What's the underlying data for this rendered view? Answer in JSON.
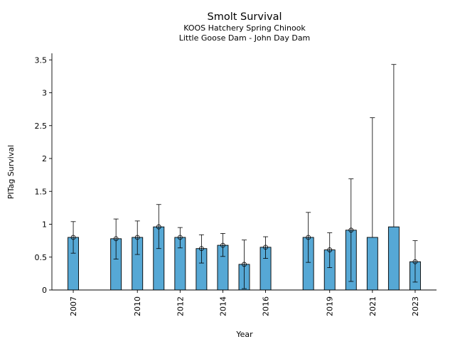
{
  "chart_data": {
    "type": "bar",
    "title": "Smolt Survival",
    "subtitle_lines": [
      "KOOS Hatchery Spring Chinook",
      "Little Goose Dam - John Day Dam"
    ],
    "xlabel": "Year",
    "ylabel": "PITag Survival",
    "ylim": [
      0,
      3.6
    ],
    "yticks": [
      0,
      0.5,
      1,
      1.5,
      2,
      2.5,
      3,
      3.5
    ],
    "ytick_labels": [
      "0",
      "0.5",
      "1",
      "1.5",
      "2",
      "2.5",
      "3",
      "3.5"
    ],
    "xlim": [
      2006,
      2024
    ],
    "xticks": [
      2007,
      2010,
      2012,
      2014,
      2016,
      2019,
      2021,
      2023
    ],
    "xtick_labels": [
      "2007",
      "2010",
      "2012",
      "2014",
      "2016",
      "2019",
      "2021",
      "2023"
    ],
    "grid": false,
    "bar_color": "#56a8d5",
    "points": [
      {
        "year": 2007,
        "value": 0.8,
        "lower": 0.56,
        "upper": 1.04,
        "marker": true
      },
      {
        "year": 2009,
        "value": 0.78,
        "lower": 0.47,
        "upper": 1.08,
        "marker": true
      },
      {
        "year": 2010,
        "value": 0.8,
        "lower": 0.54,
        "upper": 1.05,
        "marker": true
      },
      {
        "year": 2011,
        "value": 0.96,
        "lower": 0.63,
        "upper": 1.3,
        "marker": true
      },
      {
        "year": 2012,
        "value": 0.8,
        "lower": 0.64,
        "upper": 0.95,
        "marker": true
      },
      {
        "year": 2013,
        "value": 0.63,
        "lower": 0.41,
        "upper": 0.84,
        "marker": true
      },
      {
        "year": 2014,
        "value": 0.68,
        "lower": 0.51,
        "upper": 0.86,
        "marker": true
      },
      {
        "year": 2015,
        "value": 0.39,
        "lower": 0.02,
        "upper": 0.76,
        "marker": true
      },
      {
        "year": 2016,
        "value": 0.65,
        "lower": 0.48,
        "upper": 0.81,
        "marker": true
      },
      {
        "year": 2018,
        "value": 0.8,
        "lower": 0.42,
        "upper": 1.18,
        "marker": true
      },
      {
        "year": 2019,
        "value": 0.61,
        "lower": 0.34,
        "upper": 0.87,
        "marker": true
      },
      {
        "year": 2020,
        "value": 0.91,
        "lower": 0.13,
        "upper": 1.69,
        "marker": true
      },
      {
        "year": 2021,
        "value": 0.8,
        "lower": null,
        "upper": 2.62,
        "marker": false
      },
      {
        "year": 2022,
        "value": 0.96,
        "lower": null,
        "upper": 3.43,
        "marker": false
      },
      {
        "year": 2023,
        "value": 0.43,
        "lower": 0.12,
        "upper": 0.75,
        "marker": true
      }
    ]
  }
}
